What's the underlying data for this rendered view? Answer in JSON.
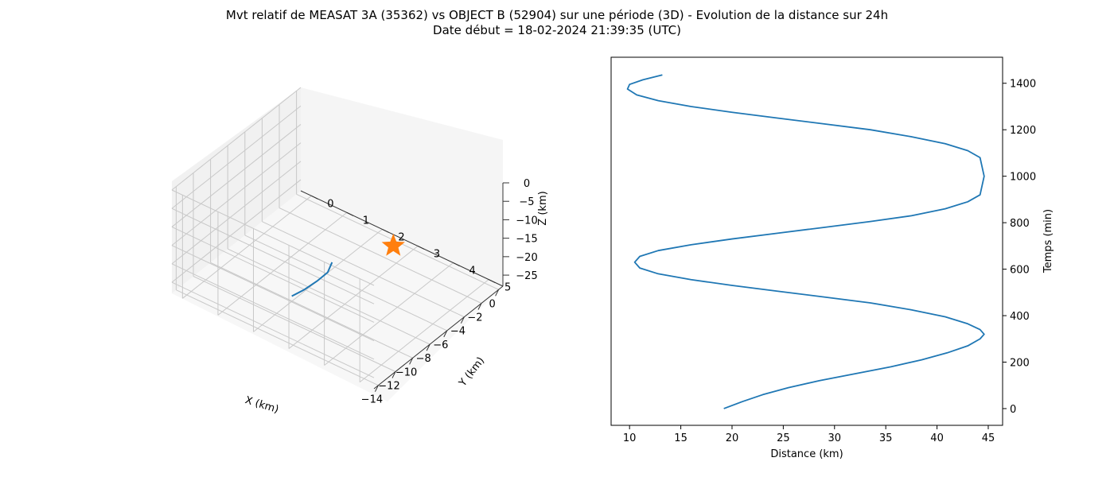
{
  "figure": {
    "title_line1": "Mvt relatif de MEASAT 3A (35362) vs OBJECT B (52904) sur une période (3D) - Evolution de la distance sur 24h",
    "title_line2": "Date début = 18-02-2024 21:39:35 (UTC)"
  },
  "colors": {
    "series": "#1f77b4",
    "marker": "#ff7f0e",
    "grid": "#b0b0b0",
    "pane": "#f2f2f2"
  },
  "chart_data": [
    {
      "type": "scatter",
      "projection": "3d",
      "xlabel": "X (km)",
      "ylabel": "Y (km)",
      "zlabel": "Z (km)",
      "xticks": [
        "−14",
        "−12",
        "−10",
        "−8",
        "−6",
        "−4",
        "−2",
        "0"
      ],
      "yticks": [
        "0",
        "1",
        "2",
        "3",
        "4",
        "5"
      ],
      "zticks": [
        "0",
        "−5",
        "−10",
        "−15",
        "−20",
        "−25"
      ],
      "xlim": [
        -14.5,
        0.5
      ],
      "ylim": [
        -0.3,
        5.4
      ],
      "zlim": [
        -28,
        0
      ],
      "grid": true,
      "series": [
        {
          "kind": "line",
          "points": [
            [
              -10.3,
              3.2,
              -11.5
            ],
            [
              -10.4,
              3.1,
              -14.5
            ],
            [
              -10.8,
              2.9,
              -17.0
            ],
            [
              -11.5,
              2.7,
              -19.0
            ],
            [
              -12.1,
              2.5,
              -20.5
            ]
          ]
        },
        {
          "kind": "star-marker",
          "points": [
            [
              -4.0,
              3.4,
              -17.8
            ]
          ]
        }
      ]
    },
    {
      "type": "line",
      "xlabel": "Distance (km)",
      "ylabel": "Temps (min)",
      "xticks": [
        10,
        15,
        20,
        25,
        30,
        35,
        40,
        45
      ],
      "yticks": [
        0,
        200,
        400,
        600,
        800,
        1000,
        1200,
        1400
      ],
      "xlim": [
        8.2,
        46.4
      ],
      "ylim": [
        -72,
        1512
      ],
      "y_axis_side": "right",
      "grid": false,
      "series": [
        {
          "x": [
            19.2,
            21.0,
            23.0,
            25.5,
            28.5,
            32.0,
            35.5,
            38.5,
            41.0,
            43.0,
            44.2,
            44.6,
            44.2,
            43.0,
            40.8,
            37.5,
            33.5,
            29.0,
            24.5,
            20.0,
            16.0,
            12.8,
            11.0,
            10.5,
            11.0,
            12.8,
            16.0,
            20.0,
            24.5,
            29.0,
            33.5,
            37.5,
            40.8,
            43.0,
            44.2,
            44.6,
            44.2,
            43.0,
            40.8,
            37.5,
            33.5,
            29.0,
            24.5,
            20.0,
            16.0,
            12.8,
            10.7,
            9.8,
            10.0,
            11.3,
            13.2
          ],
          "y": [
            0,
            30,
            60,
            90,
            120,
            150,
            180,
            210,
            240,
            270,
            300,
            320,
            340,
            365,
            395,
            425,
            455,
            480,
            505,
            530,
            555,
            580,
            605,
            630,
            655,
            680,
            705,
            730,
            755,
            780,
            805,
            830,
            860,
            890,
            920,
            1000,
            1080,
            1110,
            1140,
            1170,
            1200,
            1225,
            1250,
            1275,
            1300,
            1325,
            1350,
            1375,
            1395,
            1415,
            1436
          ]
        }
      ]
    }
  ]
}
